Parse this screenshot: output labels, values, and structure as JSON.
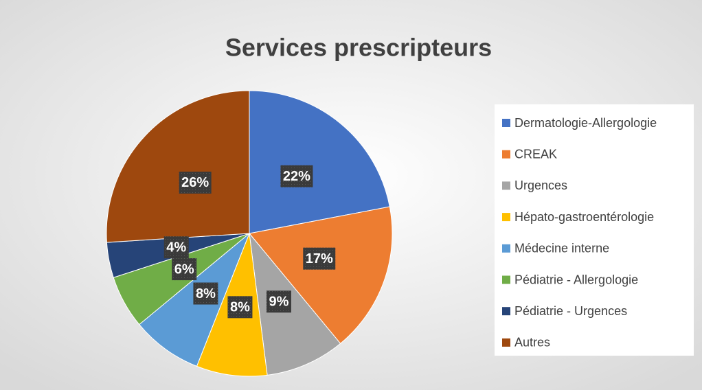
{
  "chart_data": {
    "type": "pie",
    "title": "Services prescripteurs",
    "categories": [
      "Dermatologie-Allergologie",
      "CREAK",
      "Urgences",
      "Hépato-gastroentérologie",
      "Médecine interne",
      "Pédiatrie - Allergologie",
      "Pédiatrie - Urgences",
      "Autres"
    ],
    "values": [
      22,
      17,
      9,
      8,
      8,
      6,
      4,
      26
    ],
    "value_labels": [
      "22%",
      "17%",
      "9%",
      "8%",
      "8%",
      "6%",
      "4%",
      "26%"
    ],
    "colors": [
      "#4472c4",
      "#ed7d31",
      "#a5a5a5",
      "#ffc000",
      "#5b9bd5",
      "#70ad47",
      "#264478",
      "#9e480e"
    ],
    "legend": "right"
  }
}
